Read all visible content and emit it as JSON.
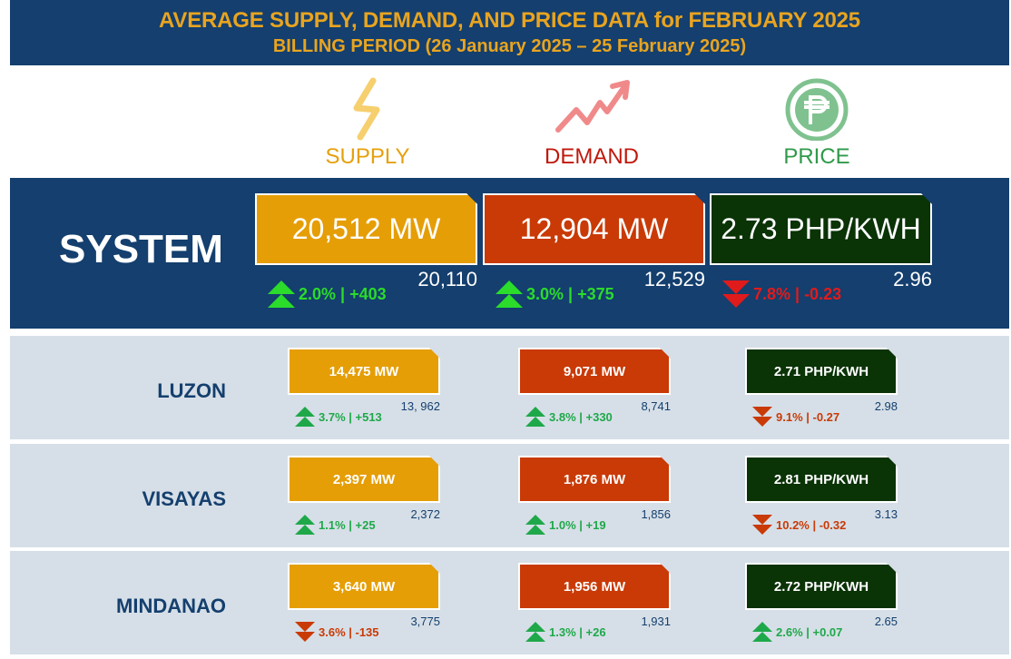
{
  "header": {
    "title": "AVERAGE SUPPLY, DEMAND, AND PRICE DATA for FEBRUARY 2025",
    "subtitle": "BILLING PERIOD (26 January 2025 – 25 February 2025)"
  },
  "categories": {
    "supply": {
      "label": "SUPPLY",
      "icon": "lightning-icon",
      "color": "#e5a00d"
    },
    "demand": {
      "label": "DEMAND",
      "icon": "trend-up-icon",
      "color": "#c0180c"
    },
    "price": {
      "label": "PRICE",
      "icon": "peso-icon",
      "color": "#2f9a4a"
    }
  },
  "colors": {
    "supply_box": "#e59e06",
    "demand_box": "#c93a06",
    "price_box": "#0a3306",
    "up": "#1fa84a",
    "up_system": "#2bdc2b",
    "down": "#c93a06",
    "down_system": "#e01b1b"
  },
  "system": {
    "label": "SYSTEM",
    "supply": {
      "value": "20,512 MW",
      "previous": "20,110",
      "change": "2.0% | +403",
      "direction": "up"
    },
    "demand": {
      "value": "12,904 MW",
      "previous": "12,529",
      "change": "3.0% | +375",
      "direction": "up"
    },
    "price": {
      "value": "2.73 PHP/KWH",
      "previous": "2.96",
      "change": "7.8% | -0.23",
      "direction": "down"
    }
  },
  "regions": [
    {
      "name": "LUZON",
      "supply": {
        "value": "14,475 MW",
        "previous": "13, 962",
        "change": "3.7% | +513",
        "direction": "up"
      },
      "demand": {
        "value": "9,071 MW",
        "previous": "8,741",
        "change": "3.8% | +330",
        "direction": "up"
      },
      "price": {
        "value": "2.71 PHP/KWH",
        "previous": "2.98",
        "change": "9.1% | -0.27",
        "direction": "down"
      }
    },
    {
      "name": "VISAYAS",
      "supply": {
        "value": "2,397 MW",
        "previous": "2,372",
        "change": "1.1% | +25",
        "direction": "up"
      },
      "demand": {
        "value": "1,876 MW",
        "previous": "1,856",
        "change": "1.0% | +19",
        "direction": "up"
      },
      "price": {
        "value": "2.81 PHP/KWH",
        "previous": "3.13",
        "change": "10.2% | -0.32",
        "direction": "down"
      }
    },
    {
      "name": "MINDANAO",
      "supply": {
        "value": "3,640 MW",
        "previous": "3,775",
        "change": "3.6% | -135",
        "direction": "down"
      },
      "demand": {
        "value": "1,956 MW",
        "previous": "1,931",
        "change": "1.3% | +26",
        "direction": "up"
      },
      "price": {
        "value": "2.72 PHP/KWH",
        "previous": "2.65",
        "change": "2.6% | +0.07",
        "direction": "up"
      }
    }
  ]
}
